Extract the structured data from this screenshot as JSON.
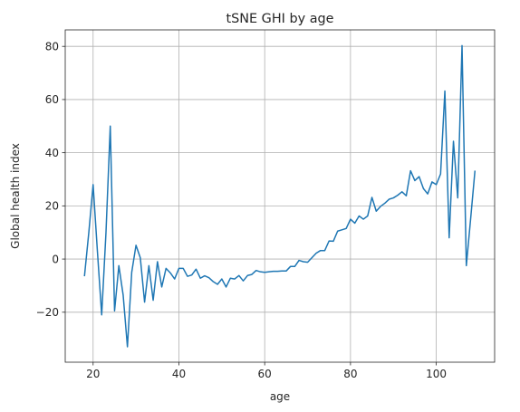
{
  "chart_data": {
    "type": "line",
    "title": "tSNE GHI by age",
    "xlabel": "age",
    "ylabel": "Global health index",
    "xlim": [
      13.5,
      113.6
    ],
    "ylim": [
      -38.8,
      86.2
    ],
    "xticks": [
      20,
      40,
      60,
      80,
      100
    ],
    "yticks": [
      -20,
      0,
      20,
      40,
      60,
      80
    ],
    "grid": true,
    "line_color": "#1f77b4",
    "series": [
      {
        "x": [
          18,
          19,
          20,
          21,
          22,
          23,
          24,
          25,
          26,
          27,
          28,
          29,
          30,
          31,
          32,
          33,
          34,
          35,
          36,
          37,
          38,
          39,
          40,
          41,
          42,
          43,
          44,
          45,
          46,
          47,
          48,
          49,
          50,
          51,
          52,
          53,
          54,
          55,
          56,
          57,
          58,
          59,
          60,
          61,
          62,
          63,
          64,
          65,
          66,
          67,
          68,
          69,
          70,
          71,
          72,
          73,
          74,
          75,
          76,
          77,
          78,
          79,
          80,
          81,
          82,
          83,
          84,
          85,
          86,
          87,
          88,
          89,
          90,
          91,
          92,
          93,
          94,
          95,
          96,
          97,
          98,
          99,
          100,
          101,
          102,
          103,
          104,
          105,
          106,
          107,
          108,
          109
        ],
        "values": [
          -6.2,
          10,
          28,
          3,
          -21,
          10,
          50,
          -19.5,
          -2.5,
          -13.5,
          -33,
          -5,
          5.2,
          0.5,
          -16.2,
          -2.5,
          -15.5,
          -1,
          -10.5,
          -3.5,
          -5.2,
          -7.5,
          -3.5,
          -3.5,
          -6.5,
          -6,
          -3.8,
          -7.2,
          -6.3,
          -7,
          -8.5,
          -9.5,
          -7.5,
          -10.5,
          -7.2,
          -7.5,
          -6.2,
          -8.2,
          -6.2,
          -5.8,
          -4.3,
          -4.8,
          -5,
          -4.8,
          -4.6,
          -4.6,
          -4.5,
          -4.5,
          -2.8,
          -2.8,
          -0.5,
          -1,
          -1.2,
          0.5,
          2.2,
          3.2,
          3.2,
          6.8,
          6.7,
          10.5,
          11,
          11.5,
          15,
          13.5,
          16.2,
          15,
          16.2,
          23.2,
          18,
          19.8,
          21,
          22.5,
          23,
          24,
          25.3,
          23.8,
          33.2,
          29.5,
          31,
          26.5,
          24.5,
          29,
          28,
          32,
          63.2,
          8,
          44.3,
          23,
          80.3,
          -2.5,
          15,
          33
        ]
      }
    ]
  }
}
